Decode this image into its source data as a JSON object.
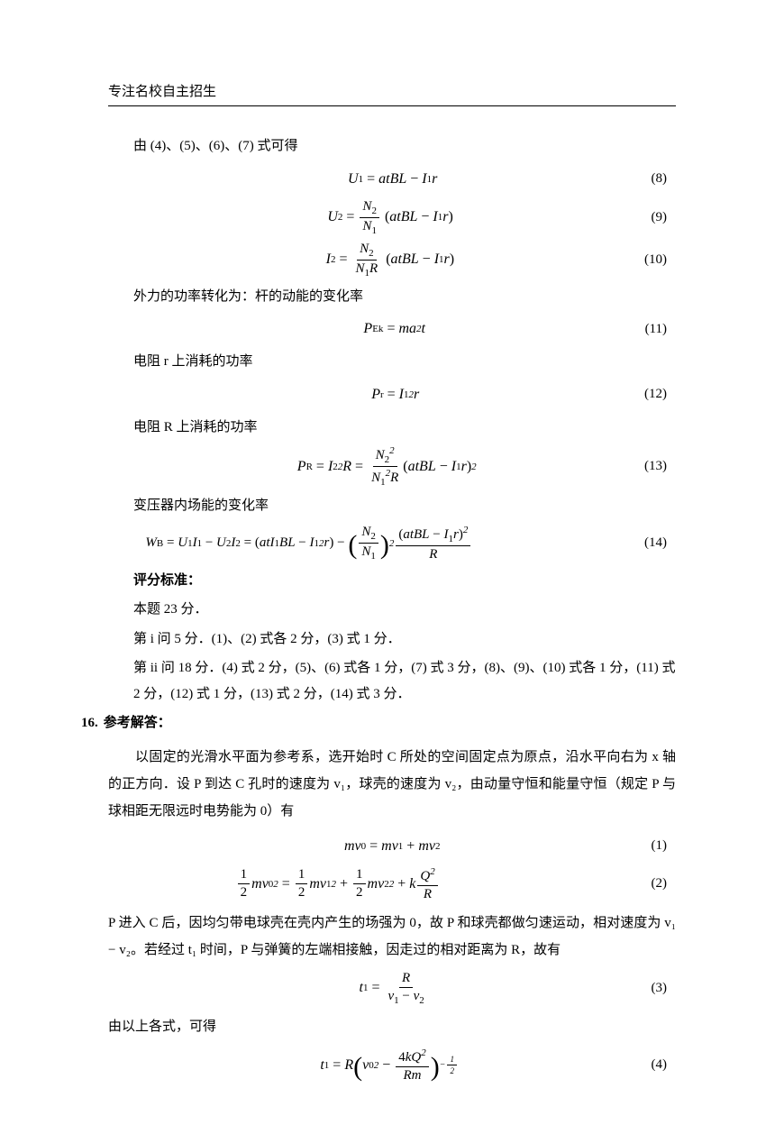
{
  "header": {
    "title": "专注名校自主招生"
  },
  "lines": {
    "l1": "由 (4)、(5)、(6)、(7) 式可得",
    "l2": "外力的功率转化为：杆的动能的变化率",
    "l3": "电阻 r 上消耗的功率",
    "l4": "电阻 R 上消耗的功率",
    "l5": "变压器内场能的变化率",
    "grading_h": "评分标准：",
    "grading1": "本题 23 分．",
    "grading2": "第 i 问 5 分．(1)、(2) 式各 2 分，(3) 式 1 分．",
    "grading3": "第 ii 问 18 分．(4) 式 2 分，(5)、(6) 式各 1 分，(7) 式 3 分，(8)、(9)、(10) 式各 1 分，(11) 式 2 分，(12) 式 1 分，(13) 式 2 分，(14) 式 3 分．",
    "q16_label": "16.",
    "q16_head": "参考解答：",
    "q16_p1": "以固定的光滑水平面为参考系，选开始时 C 所处的空间固定点为原点，沿水平向右为 x 轴的正方向．设 P 到达 C 孔时的速度为 v₁，球壳的速度为 v₂，由动量守恒和能量守恒（规定 P 与球相距无限远时电势能为 0）有",
    "q16_p2": "P 进入 C 后，因均匀带电球壳在壳内产生的场强为 0，故 P 和球壳都做匀速运动，相对速度为 v₁ − v₂。若经过 t₁ 时间，P 与弹簧的左端相接触，因走过的相对距离为 R，故有",
    "q16_p3": "由以上各式，可得"
  },
  "equations": {
    "e8": {
      "lhs": "U",
      "sub1": "1",
      "rhs_a": "atBL",
      "rhs_b": "I",
      "sub2": "1",
      "rhs_c": "r",
      "num": "(8)"
    },
    "e9": {
      "lhs": "U",
      "sub1": "2",
      "f_n": "N",
      "fn_s": "2",
      "f_d": "N",
      "fd_s": "1",
      "inner_a": "atBL",
      "inner_b": "I",
      "ib_s": "1",
      "inner_c": "r",
      "num": "(9)"
    },
    "e10": {
      "lhs": "I",
      "sub1": "2",
      "f_n": "N",
      "fn_s": "2",
      "f_d": "N",
      "fd_s": "1",
      "f_d2": "R",
      "inner_a": "atBL",
      "inner_b": "I",
      "ib_s": "1",
      "inner_c": "r",
      "num": "(10)"
    },
    "e11": {
      "lhs": "P",
      "sub1": "Ek",
      "rhs": "ma",
      "exp": "2",
      "rhs2": "t",
      "num": "(11)"
    },
    "e12": {
      "lhs": "P",
      "sub1": "r",
      "rhs": "I",
      "rsub": "1",
      "exp": "2",
      "rhs2": "r",
      "num": "(12)"
    },
    "e13": {
      "lhs": "P",
      "sub1": "R",
      "mid": "I",
      "msub": "2",
      "mexp": "2",
      "mid2": "R",
      "f_n": "N",
      "fn_s": "2",
      "fn_e": "2",
      "f_d": "N",
      "fd_s": "1",
      "fd_e": "2",
      "f_d2": "R",
      "inner_a": "atBL",
      "inner_b": "I",
      "ib_s": "1",
      "inner_c": "r",
      "exp": "2",
      "num": "(13)"
    },
    "e14": {
      "lhs": "W",
      "sub1": "B",
      "t1a": "U",
      "t1as": "1",
      "t1b": "I",
      "t1bs": "1",
      "t2a": "U",
      "t2as": "2",
      "t2b": "I",
      "t2bs": "2",
      "p1a": "atI",
      "p1as": "1",
      "p1b": "BL",
      "p1c": "I",
      "p1cs": "1",
      "p1ce": "2",
      "p1d": "r",
      "fn": "N",
      "fns": "2",
      "fd": "N",
      "fds": "1",
      "fexp": "2",
      "p2n_a": "atBL",
      "p2n_b": "I",
      "p2n_bs": "1",
      "p2n_c": "r",
      "p2n_e": "2",
      "p2d": "R",
      "num": "(14)"
    },
    "e1b": {
      "lhs": "mv",
      "sub0": "0",
      "rhs1": "mv",
      "sub1": "1",
      "rhs2": "mv",
      "sub2": "2",
      "num": "(1)"
    },
    "e2b": {
      "half": "1",
      "half_d": "2",
      "m": "m",
      "v": "v",
      "s0": "0",
      "e2": "2",
      "s1": "1",
      "s2": "2",
      "k": "k",
      "Q": "Q",
      "R": "R",
      "num": "(2)"
    },
    "e3b": {
      "lhs": "t",
      "sub1": "1",
      "fn": "R",
      "fda": "v",
      "fdas": "1",
      "fdb": "v",
      "fdbs": "2",
      "num": "(3)"
    },
    "e4b": {
      "lhs": "t",
      "sub1": "1",
      "R": "R",
      "va": "v",
      "vas": "0",
      "ve": "2",
      "fn_a": "4kQ",
      "fn_e": "2",
      "fd": "Rm",
      "exp_n": "1",
      "exp_d": "2",
      "num": "(4)"
    }
  }
}
